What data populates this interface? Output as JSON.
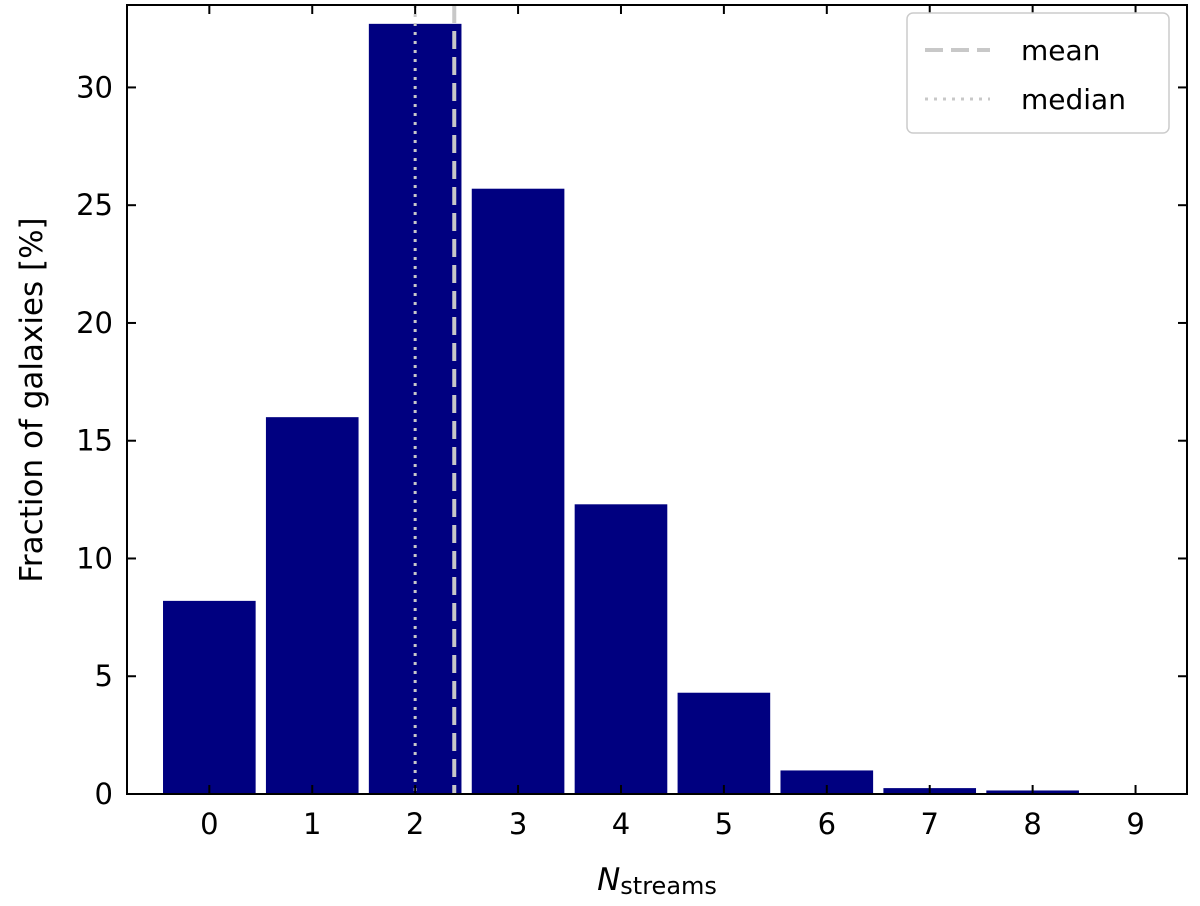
{
  "chart_data": {
    "type": "bar",
    "categories": [
      "0",
      "1",
      "2",
      "3",
      "4",
      "5",
      "6",
      "7",
      "8",
      "9"
    ],
    "x": [
      0,
      1,
      2,
      3,
      4,
      5,
      6,
      7,
      8,
      9
    ],
    "values": [
      8.2,
      16.0,
      32.7,
      25.7,
      12.3,
      4.3,
      1.0,
      0.25,
      0.15,
      0.0
    ],
    "bar_color": "#000080",
    "xlabel": "N",
    "xlabel_subscript": "streams",
    "ylabel": "Fraction of galaxies [%]",
    "xlim": [
      -0.8,
      9.5
    ],
    "ylim": [
      0,
      33.5
    ],
    "yticks": [
      "0",
      "5",
      "10",
      "15",
      "20",
      "25",
      "30"
    ],
    "grid": false,
    "reference_lines": [
      {
        "name": "mean",
        "x": 2.38,
        "style": "dashed",
        "color": "#c8c8c8"
      },
      {
        "name": "median",
        "x": 2.0,
        "style": "dotted",
        "color": "#c8c8c8"
      }
    ],
    "legend": {
      "position": "top-right",
      "entries": [
        "mean",
        "median"
      ]
    }
  }
}
